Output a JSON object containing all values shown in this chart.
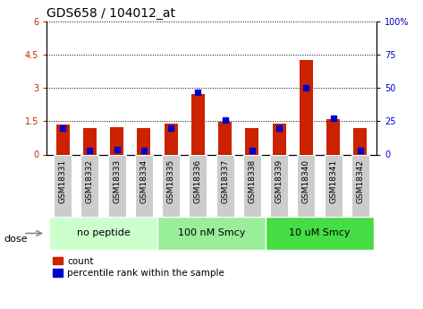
{
  "title": "GDS658 / 104012_at",
  "samples": [
    "GSM18331",
    "GSM18332",
    "GSM18333",
    "GSM18334",
    "GSM18335",
    "GSM18336",
    "GSM18337",
    "GSM18338",
    "GSM18339",
    "GSM18340",
    "GSM18341",
    "GSM18342"
  ],
  "red_values": [
    1.35,
    1.2,
    1.22,
    1.2,
    1.38,
    2.72,
    1.48,
    1.18,
    1.38,
    4.28,
    1.58,
    1.18
  ],
  "blue_marker_pct": [
    20,
    3,
    4,
    3,
    20,
    47,
    26,
    3,
    20,
    50,
    27,
    3
  ],
  "groups": [
    {
      "label": "no peptide",
      "start": 0,
      "end": 4,
      "color": "#ccffcc"
    },
    {
      "label": "100 nM Smcy",
      "start": 4,
      "end": 8,
      "color": "#99ee99"
    },
    {
      "label": "10 uM Smcy",
      "start": 8,
      "end": 12,
      "color": "#44dd44"
    }
  ],
  "dose_label": "dose",
  "ylim_left": [
    0,
    6
  ],
  "ylim_right": [
    0,
    100
  ],
  "yticks_left": [
    0,
    1.5,
    3.0,
    4.5,
    6.0
  ],
  "yticks_right": [
    0,
    25,
    50,
    75,
    100
  ],
  "red_color": "#cc2200",
  "blue_color": "#0000cc",
  "legend_count": "count",
  "legend_pct": "percentile rank within the sample",
  "bar_width": 0.5,
  "blue_marker_size": 4,
  "bg_color": "#ffffff",
  "sample_box_color": "#cccccc"
}
